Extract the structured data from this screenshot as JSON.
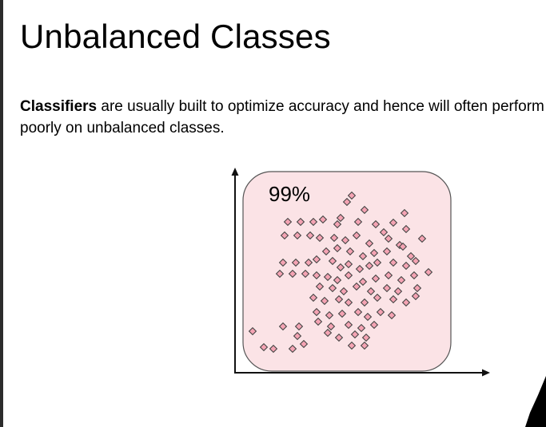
{
  "slide": {
    "title": "Unbalanced Classes",
    "body_bold": "Classifiers",
    "body_rest": " are usually built to optimize accuracy and hence will often perform poorly on unbalanced classes."
  },
  "diagram": {
    "region_label": "99%",
    "colors": {
      "region_fill": "#fbe3e6",
      "region_stroke": "#555555",
      "marker_fill": "#f4a3b3",
      "marker_stroke": "#444444",
      "axis": "#111111"
    },
    "marker_shape": "diamond"
  }
}
